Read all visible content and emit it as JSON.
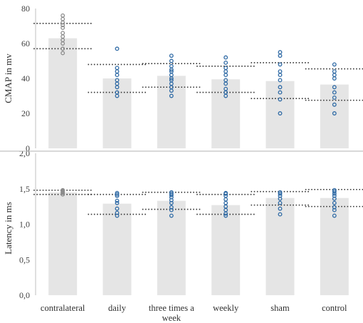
{
  "chart_data": [
    {
      "type": "bar",
      "ylabel": "CMAP in mv",
      "ylim": [
        0,
        80
      ],
      "yticks": [
        "0",
        "20",
        "40",
        "60",
        "80"
      ],
      "grid": false,
      "categories": [
        "contralateral",
        "daily",
        "three times a week",
        "weekly",
        "sham",
        "control"
      ],
      "category_display": [
        [
          "contralateral"
        ],
        [
          "daily"
        ],
        [
          "three times a",
          "week"
        ],
        [
          "weekly"
        ],
        [
          "sham"
        ],
        [
          "control"
        ]
      ],
      "values": [
        63,
        40,
        41.5,
        39.5,
        38.5,
        36.5
      ],
      "error_range": [
        [
          57,
          71.5
        ],
        [
          32,
          48
        ],
        [
          35,
          48.5
        ],
        [
          32,
          47
        ],
        [
          28.5,
          49
        ],
        [
          27.5,
          45.5
        ]
      ],
      "points": [
        [
          54.5,
          57,
          60,
          62,
          64,
          66,
          69,
          70.5,
          72,
          74,
          76
        ],
        [
          30,
          32,
          35,
          37,
          39,
          42,
          44,
          46,
          57
        ],
        [
          30,
          33,
          35,
          37,
          39,
          40,
          42,
          44,
          45,
          47,
          50,
          53
        ],
        [
          30,
          32,
          34,
          37,
          39,
          42,
          44,
          46,
          49,
          52
        ],
        [
          20,
          28,
          32,
          35,
          39,
          42,
          44,
          48,
          53,
          55
        ],
        [
          20,
          25,
          29,
          32,
          35,
          40,
          42,
          44,
          48
        ]
      ],
      "colors": {
        "bar": "#e5e5e5",
        "point_first": "#8c8c8c",
        "point": "#2f6aa5",
        "range_line": "#333333"
      }
    },
    {
      "type": "bar",
      "ylabel": "Latency in ms",
      "ylim": [
        0,
        2
      ],
      "yticks": [
        "0,0",
        "0,5",
        "1,0",
        "1,5",
        "2,0"
      ],
      "grid": false,
      "categories": [
        "contralateral",
        "daily",
        "three times a week",
        "weekly",
        "sham",
        "control"
      ],
      "values": [
        1.45,
        1.29,
        1.33,
        1.27,
        1.37,
        1.37
      ],
      "error_range": [
        [
          1.42,
          1.48
        ],
        [
          1.14,
          1.42
        ],
        [
          1.21,
          1.45
        ],
        [
          1.14,
          1.42
        ],
        [
          1.27,
          1.46
        ],
        [
          1.25,
          1.49
        ]
      ],
      "points": [
        [
          1.42,
          1.44,
          1.45,
          1.46,
          1.47,
          1.48
        ],
        [
          1.12,
          1.16,
          1.22,
          1.3,
          1.33,
          1.4,
          1.42,
          1.44
        ],
        [
          1.12,
          1.2,
          1.24,
          1.3,
          1.34,
          1.38,
          1.41,
          1.43,
          1.45
        ],
        [
          1.12,
          1.15,
          1.2,
          1.25,
          1.3,
          1.35,
          1.4,
          1.43,
          1.44
        ],
        [
          1.14,
          1.22,
          1.3,
          1.36,
          1.4,
          1.43,
          1.45
        ],
        [
          1.12,
          1.2,
          1.24,
          1.3,
          1.36,
          1.4,
          1.43,
          1.46,
          1.48
        ]
      ],
      "colors": {
        "bar": "#e5e5e5",
        "point_first": "#8c8c8c",
        "point": "#2f6aa5",
        "range_line": "#333333"
      }
    }
  ]
}
